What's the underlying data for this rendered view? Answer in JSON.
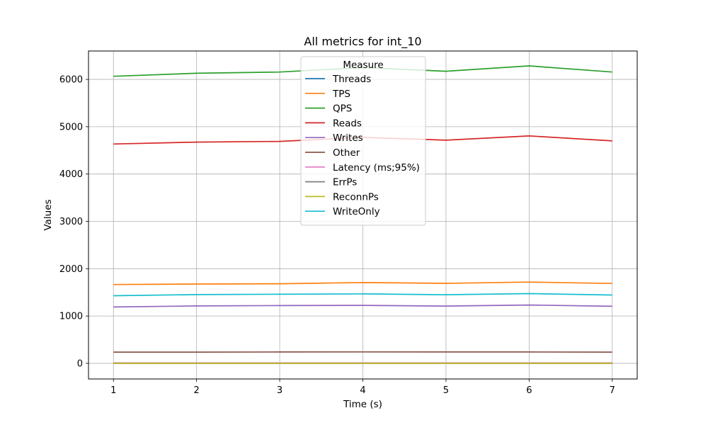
{
  "chart_data": {
    "type": "line",
    "title": "All metrics for int_10",
    "xlabel": "Time (s)",
    "ylabel": "Values",
    "x": [
      1,
      2,
      3,
      4,
      5,
      6,
      7
    ],
    "xlim": [
      0.7,
      7.3
    ],
    "ylim": [
      -330,
      6600
    ],
    "xticks": [
      1,
      2,
      3,
      4,
      5,
      6,
      7
    ],
    "yticks": [
      0,
      1000,
      2000,
      3000,
      4000,
      5000,
      6000
    ],
    "grid": true,
    "legend": {
      "title": "Measure",
      "placement": "upper center"
    },
    "series": [
      {
        "name": "Threads",
        "color": "#1f77b4",
        "values": [
          10,
          10,
          10,
          10,
          10,
          10,
          10
        ]
      },
      {
        "name": "TPS",
        "color": "#ff7f0e",
        "values": [
          1665,
          1675,
          1682,
          1707,
          1690,
          1717,
          1688
        ]
      },
      {
        "name": "QPS",
        "color": "#2ca02c",
        "values": [
          6065,
          6130,
          6155,
          6250,
          6172,
          6285,
          6155
        ]
      },
      {
        "name": "Reads",
        "color": "#d62728",
        "values": [
          4635,
          4675,
          4690,
          4775,
          4715,
          4805,
          4700
        ]
      },
      {
        "name": "Writes",
        "color": "#9467bd",
        "values": [
          1190,
          1213,
          1220,
          1225,
          1210,
          1232,
          1205
        ]
      },
      {
        "name": "Other",
        "color": "#8c564b",
        "values": [
          238,
          238,
          240,
          242,
          240,
          241,
          238
        ]
      },
      {
        "name": "Latency (ms;95%)",
        "color": "#e377c2",
        "values": [
          8,
          8,
          8,
          8,
          8,
          8,
          8
        ]
      },
      {
        "name": "ErrPs",
        "color": "#7f7f7f",
        "values": [
          0,
          0,
          0,
          0,
          0,
          0,
          0
        ]
      },
      {
        "name": "ReconnPs",
        "color": "#bcbd22",
        "values": [
          0,
          0,
          0,
          0,
          0,
          0,
          0
        ]
      },
      {
        "name": "WriteOnly",
        "color": "#17becf",
        "values": [
          1428,
          1452,
          1460,
          1467,
          1450,
          1473,
          1443
        ]
      }
    ]
  }
}
